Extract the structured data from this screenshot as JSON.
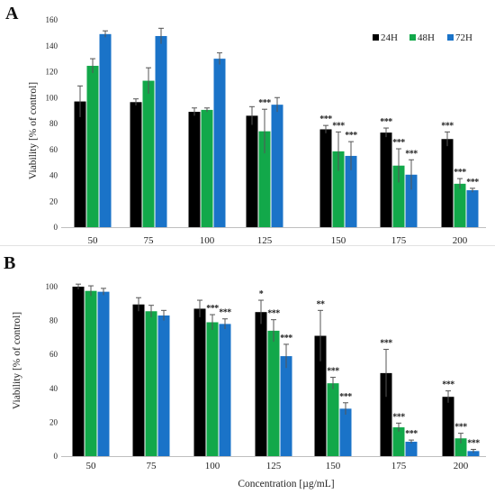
{
  "chart_data": [
    {
      "panel_label": "A",
      "type": "bar",
      "categories": [
        "50",
        "75",
        "100",
        "125",
        "150",
        "175",
        "200"
      ],
      "series": [
        {
          "name": "24H",
          "color": "#000000",
          "values": [
            97,
            96.5,
            89,
            86,
            75.5,
            73,
            68
          ],
          "errors": [
            12,
            2.5,
            3,
            7,
            3,
            3.5,
            5.5
          ],
          "sig": [
            "",
            "",
            "",
            "",
            "***",
            "***",
            "***"
          ]
        },
        {
          "name": "48H",
          "color": "#12a84a",
          "values": [
            124.5,
            113,
            90.5,
            74,
            58.5,
            47.5,
            33.5
          ],
          "errors": [
            5.5,
            10,
            1.5,
            17,
            15,
            13,
            4
          ]
        },
        {
          "name": "72H",
          "color": "#1a73c8",
          "values": [
            149,
            147.5,
            130,
            94.5,
            55,
            40.5,
            28.5
          ],
          "errors": [
            2.5,
            6,
            4.5,
            5.5,
            11,
            11.5,
            1.5
          ]
        }
      ],
      "sig_labels_detail": [
        {
          "category": "125",
          "series": "48H",
          "label": "***"
        },
        {
          "category": "150",
          "series": "48H",
          "label": "***"
        },
        {
          "category": "150",
          "series": "72H",
          "label": "***"
        },
        {
          "category": "175",
          "series": "48H",
          "label": "***"
        },
        {
          "category": "175",
          "series": "72H",
          "label": "***"
        },
        {
          "category": "200",
          "series": "48H",
          "label": "***"
        },
        {
          "category": "200",
          "series": "72H",
          "label": "***"
        }
      ],
      "xlabel": "",
      "ylabel": "Viability [% of control]",
      "ylim": [
        0,
        160
      ],
      "yticks": [
        "0",
        "20",
        "40",
        "60",
        "80",
        "100",
        "120",
        "140",
        "160"
      ],
      "legend": [
        "24H",
        "48H",
        "72H"
      ],
      "legend_position": "top-right",
      "grid": false
    },
    {
      "panel_label": "B",
      "type": "bar",
      "categories": [
        "50",
        "75",
        "100",
        "125",
        "150",
        "175",
        "200"
      ],
      "series": [
        {
          "name": "",
          "color": "#000000",
          "values": [
            100,
            89.5,
            87,
            85,
            71,
            49,
            35
          ],
          "errors": [
            1.5,
            4,
            5,
            7,
            15,
            14,
            3.5
          ]
        },
        {
          "name": "",
          "color": "#12a84a",
          "values": [
            97.5,
            85.5,
            79,
            74,
            43,
            17,
            10.5
          ],
          "errors": [
            3,
            3.5,
            4.5,
            6.5,
            3.5,
            2.5,
            3
          ]
        },
        {
          "name": "",
          "color": "#1a73c8",
          "values": [
            97,
            83,
            78,
            59,
            28,
            8.5,
            3
          ],
          "errors": [
            2,
            3,
            3,
            7,
            3.5,
            1,
            1
          ]
        }
      ],
      "sig_labels_detail": [
        {
          "category": "100",
          "series": 1,
          "label": "***"
        },
        {
          "category": "100",
          "series": 2,
          "label": "***"
        },
        {
          "category": "125",
          "series": 0,
          "label": "*"
        },
        {
          "category": "125",
          "series": 1,
          "label": "***"
        },
        {
          "category": "125",
          "series": 2,
          "label": "***"
        },
        {
          "category": "150",
          "series": 0,
          "label": "**"
        },
        {
          "category": "150",
          "series": 1,
          "label": "***"
        },
        {
          "category": "150",
          "series": 2,
          "label": "***"
        },
        {
          "category": "175",
          "series": 0,
          "label": "***"
        },
        {
          "category": "175",
          "series": 1,
          "label": "***"
        },
        {
          "category": "175",
          "series": 2,
          "label": "***"
        },
        {
          "category": "200",
          "series": 0,
          "label": "***"
        },
        {
          "category": "200",
          "series": 1,
          "label": "***"
        },
        {
          "category": "200",
          "series": 2,
          "label": "***"
        }
      ],
      "xlabel": "Concentration [µg/mL]",
      "ylabel": "Viability [% of control]",
      "ylim": [
        0,
        100
      ],
      "yticks": [
        "0",
        "20",
        "40",
        "60",
        "80",
        "100"
      ],
      "grid": false
    }
  ]
}
